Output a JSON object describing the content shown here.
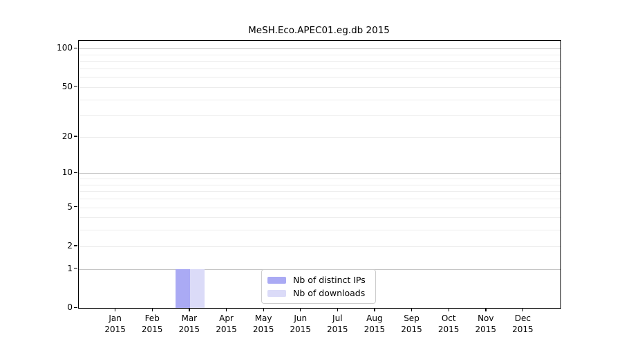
{
  "chart_data": {
    "type": "bar",
    "title": "MeSH.Eco.APEC01.eg.db 2015",
    "year_label": "2015",
    "categories": [
      "Jan",
      "Feb",
      "Mar",
      "Apr",
      "May",
      "Jun",
      "Jul",
      "Aug",
      "Sep",
      "Oct",
      "Nov",
      "Dec"
    ],
    "series": [
      {
        "name": "Nb of distinct IPs",
        "color": "#aaaaf4",
        "values": [
          0,
          0,
          1,
          0,
          0,
          0,
          0,
          0,
          0,
          0,
          0,
          0
        ]
      },
      {
        "name": "Nb of downloads",
        "color": "#dbdbf8",
        "values": [
          0,
          0,
          1,
          0,
          0,
          0,
          0,
          0,
          0,
          0,
          0,
          0
        ]
      }
    ],
    "y_axis": {
      "scale": "log2(1+value)",
      "tick_labels": [
        0,
        1,
        2,
        5,
        10,
        20,
        50,
        100
      ],
      "major_gridlines": [
        1,
        10,
        100
      ],
      "minor_gridlines": [
        2,
        3,
        4,
        5,
        6,
        7,
        8,
        9,
        20,
        30,
        40,
        50,
        60,
        70,
        80,
        90
      ],
      "range": [
        0,
        115
      ]
    },
    "legend_position": "lower center",
    "grid": true,
    "colors": {
      "minor_grid": "#ececec",
      "major_grid": "#c6c6c6",
      "axis": "#000000",
      "background": "#ffffff"
    }
  }
}
